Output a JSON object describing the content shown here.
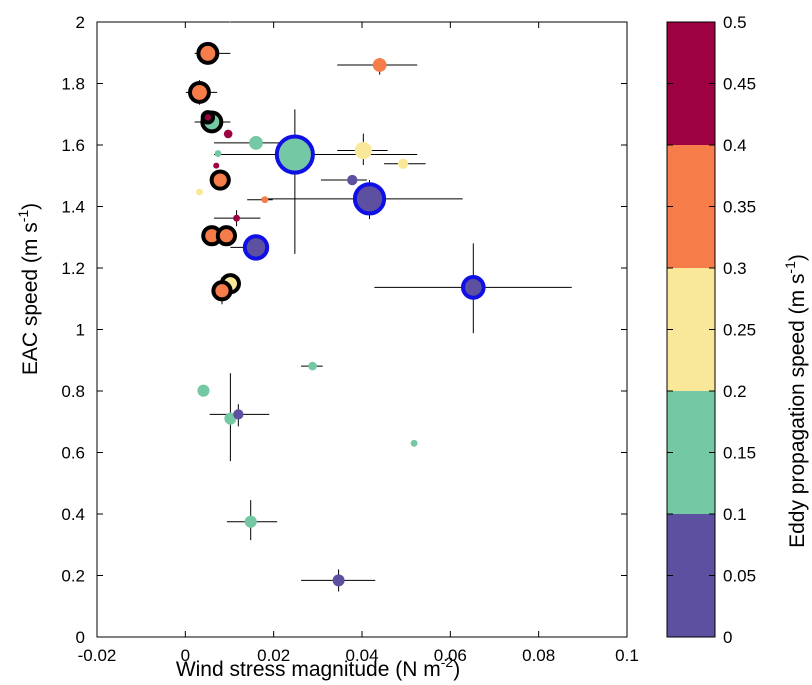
{
  "chart_data": {
    "type": "scatter",
    "xlabel": "Wind stress magnitude (N m",
    "xlabel_sup": "-2",
    "xlabel_end": ")",
    "ylabel": "EAC speed (m s",
    "ylabel_sup": "-1",
    "ylabel_end": ")",
    "xlim": [
      -0.02,
      0.1
    ],
    "ylim": [
      0,
      2
    ],
    "x_ticks": [
      -0.02,
      0,
      0.02,
      0.04,
      0.06,
      0.08,
      0.1
    ],
    "x_tick_labels": [
      "-0.02",
      "0",
      "0.02",
      "0.04",
      "0.06",
      "0.08",
      "0.1"
    ],
    "y_ticks": [
      0,
      0.2,
      0.4,
      0.6,
      0.8,
      1,
      1.2,
      1.4,
      1.6,
      1.8,
      2
    ],
    "y_tick_labels": [
      "0",
      "0.2",
      "0.4",
      "0.6",
      "0.8",
      "1",
      "1.2",
      "1.4",
      "1.6",
      "1.8",
      "2"
    ],
    "colorbar": {
      "label": "Eddy propagation speed (m s",
      "label_sup": "-1",
      "label_end": ")",
      "range": [
        0,
        0.5
      ],
      "bins": [
        {
          "from": 0,
          "to": 0.1,
          "color": "#5E50A1"
        },
        {
          "from": 0.1,
          "to": 0.2,
          "color": "#74C8A3"
        },
        {
          "from": 0.2,
          "to": 0.3,
          "color": "#FAE89A"
        },
        {
          "from": 0.3,
          "to": 0.4,
          "color": "#F67D4A"
        },
        {
          "from": 0.4,
          "to": 0.5,
          "color": "#9E0142"
        }
      ],
      "tick_values": [
        0,
        0.05,
        0.1,
        0.15,
        0.2,
        0.25,
        0.3,
        0.35,
        0.4,
        0.45,
        0.5
      ],
      "tick_labels": [
        "0",
        "0.05",
        "0.1",
        "0.15",
        "0.2",
        "0.25",
        "0.3",
        "0.35",
        "0.4",
        "0.45",
        "0.5"
      ]
    },
    "points": [
      {
        "x": 0.0051,
        "y": 1.898,
        "xerr": [
          0.0021,
          0.0102
        ],
        "yerr": [
          1.898,
          1.898
        ],
        "size": 2.2,
        "color": 0.35,
        "outline": "black"
      },
      {
        "x": 0.0032,
        "y": 1.771,
        "xerr": [
          0.0001,
          0.0072
        ],
        "yerr": [
          1.731,
          1.811
        ],
        "size": 2.2,
        "color": 0.35,
        "outline": "black"
      },
      {
        "x": 0.006,
        "y": 1.675,
        "xerr": [
          0.0021,
          0.0102
        ],
        "yerr": [
          1.659,
          1.703
        ],
        "size": 2.2,
        "color": 0.15,
        "outline": "black"
      },
      {
        "x": 0.0051,
        "y": 1.69,
        "xerr": [
          0.0051,
          0.0051
        ],
        "yerr": [
          1.69,
          1.69
        ],
        "size": 1.2,
        "color": 0.42,
        "outline": "black"
      },
      {
        "x": 0.0079,
        "y": 1.486,
        "xerr": [
          0.006,
          0.01
        ],
        "yerr": [
          1.459,
          1.513
        ],
        "size": 2.0,
        "color": 0.35,
        "outline": "black"
      },
      {
        "x": 0.006,
        "y": 1.305,
        "xerr": [
          0.0043,
          0.0079
        ],
        "yerr": [
          1.305,
          1.305
        ],
        "size": 2.0,
        "color": 0.35,
        "outline": "black"
      },
      {
        "x": 0.0093,
        "y": 1.305,
        "xerr": [
          0.0079,
          0.0105
        ],
        "yerr": [
          1.305,
          1.305
        ],
        "size": 2.0,
        "color": 0.35,
        "outline": "black"
      },
      {
        "x": 0.0102,
        "y": 1.149,
        "xerr": [
          0.0102,
          0.0102
        ],
        "yerr": [
          1.149,
          1.149
        ],
        "size": 2.0,
        "color": 0.25,
        "outline": "black"
      },
      {
        "x": 0.0083,
        "y": 1.126,
        "xerr": [
          0.006,
          0.01
        ],
        "yerr": [
          1.082,
          1.17
        ],
        "size": 2.0,
        "color": 0.35,
        "outline": "black"
      },
      {
        "x": 0.0248,
        "y": 1.569,
        "xerr": [
          0.0065,
          0.0525
        ],
        "yerr": [
          1.246,
          1.716
        ],
        "size": 4.2,
        "color": 0.15,
        "outline": "blue"
      },
      {
        "x": 0.0417,
        "y": 1.425,
        "xerr": [
          0.0172,
          0.0628
        ],
        "yerr": [
          1.359,
          1.486
        ],
        "size": 3.4,
        "color": 0.05,
        "outline": "blue"
      },
      {
        "x": 0.016,
        "y": 1.267,
        "xerr": [
          0.0102,
          0.018
        ],
        "yerr": [
          1.243,
          1.29
        ],
        "size": 2.6,
        "color": 0.05,
        "outline": "blue"
      },
      {
        "x": 0.0652,
        "y": 1.137,
        "xerr": [
          0.0428,
          0.0875
        ],
        "yerr": [
          0.988,
          1.28
        ],
        "size": 2.4,
        "color": 0.05,
        "outline": "blue"
      },
      {
        "x": 0.044,
        "y": 1.86,
        "xerr": [
          0.0344,
          0.0525
        ],
        "yerr": [
          1.829,
          1.883
        ],
        "size": 1.6,
        "color": 0.35,
        "outline": "none"
      },
      {
        "x": 0.0403,
        "y": 1.582,
        "xerr": [
          0.0344,
          0.0458
        ],
        "yerr": [
          1.535,
          1.637
        ],
        "size": 2.0,
        "color": 0.25,
        "outline": "none"
      },
      {
        "x": 0.016,
        "y": 1.607,
        "xerr": [
          0.0065,
          0.0255
        ],
        "yerr": [
          1.607,
          1.607
        ],
        "size": 1.6,
        "color": 0.15,
        "outline": "none"
      },
      {
        "x": 0.0493,
        "y": 1.539,
        "xerr": [
          0.045,
          0.0544
        ],
        "yerr": [
          1.539,
          1.539
        ],
        "size": 1.2,
        "color": 0.25,
        "outline": "none"
      },
      {
        "x": 0.0378,
        "y": 1.486,
        "xerr": [
          0.0307,
          0.0411
        ],
        "yerr": [
          1.486,
          1.486
        ],
        "size": 1.2,
        "color": 0.05,
        "outline": "none"
      },
      {
        "x": 0.0097,
        "y": 1.636,
        "xerr": [
          0.0097,
          0.0097
        ],
        "yerr": [
          1.636,
          1.636
        ],
        "size": 1.0,
        "color": 0.42,
        "outline": "none"
      },
      {
        "x": 0.0074,
        "y": 1.572,
        "xerr": [
          0.0074,
          0.0074
        ],
        "yerr": [
          1.572,
          1.572
        ],
        "size": 0.8,
        "color": 0.15,
        "outline": "none"
      },
      {
        "x": 0.007,
        "y": 1.533,
        "xerr": [
          0.007,
          0.007
        ],
        "yerr": [
          1.533,
          1.533
        ],
        "size": 0.7,
        "color": 0.42,
        "outline": "none"
      },
      {
        "x": 0.0032,
        "y": 1.447,
        "xerr": [
          0.0032,
          0.0032
        ],
        "yerr": [
          1.447,
          1.447
        ],
        "size": 0.8,
        "color": 0.25,
        "outline": "none"
      },
      {
        "x": 0.018,
        "y": 1.422,
        "xerr": [
          0.014,
          0.0198
        ],
        "yerr": [
          1.422,
          1.422
        ],
        "size": 0.8,
        "color": 0.35,
        "outline": "none"
      },
      {
        "x": 0.0116,
        "y": 1.362,
        "xerr": [
          0.0065,
          0.017
        ],
        "yerr": [
          1.336,
          1.388
        ],
        "size": 0.8,
        "color": 0.42,
        "outline": "none"
      },
      {
        "x": 0.0288,
        "y": 0.881,
        "xerr": [
          0.0262,
          0.0311
        ],
        "yerr": [
          0.881,
          0.881
        ],
        "size": 1.0,
        "color": 0.15,
        "outline": "none"
      },
      {
        "x": 0.0041,
        "y": 0.801,
        "xerr": [
          0.0041,
          0.0041
        ],
        "yerr": [
          0.801,
          0.801
        ],
        "size": 1.4,
        "color": 0.15,
        "outline": "none"
      },
      {
        "x": 0.012,
        "y": 0.724,
        "xerr": [
          0.0055,
          0.019
        ],
        "yerr": [
          0.685,
          0.757
        ],
        "size": 1.2,
        "color": 0.05,
        "outline": "none"
      },
      {
        "x": 0.0102,
        "y": 0.71,
        "xerr": [
          0.0102,
          0.0102
        ],
        "yerr": [
          0.572,
          0.858
        ],
        "size": 1.4,
        "color": 0.15,
        "outline": "none"
      },
      {
        "x": 0.0518,
        "y": 0.63,
        "xerr": [
          0.0518,
          0.0518
        ],
        "yerr": [
          0.63,
          0.63
        ],
        "size": 0.8,
        "color": 0.15,
        "outline": "none"
      },
      {
        "x": 0.0148,
        "y": 0.375,
        "xerr": [
          0.0094,
          0.0208
        ],
        "yerr": [
          0.315,
          0.445
        ],
        "size": 1.4,
        "color": 0.15,
        "outline": "none"
      },
      {
        "x": 0.0347,
        "y": 0.184,
        "xerr": [
          0.0262,
          0.043
        ],
        "yerr": [
          0.148,
          0.22
        ],
        "size": 1.4,
        "color": 0.05,
        "outline": "none"
      },
      {
        "x": 0.0101,
        "y": 2.0,
        "xerr": [
          0.0101,
          0.0101
        ],
        "yerr": [
          2.0,
          2.0
        ],
        "size": 0.1,
        "color": 0.05,
        "outline": "none"
      }
    ]
  }
}
